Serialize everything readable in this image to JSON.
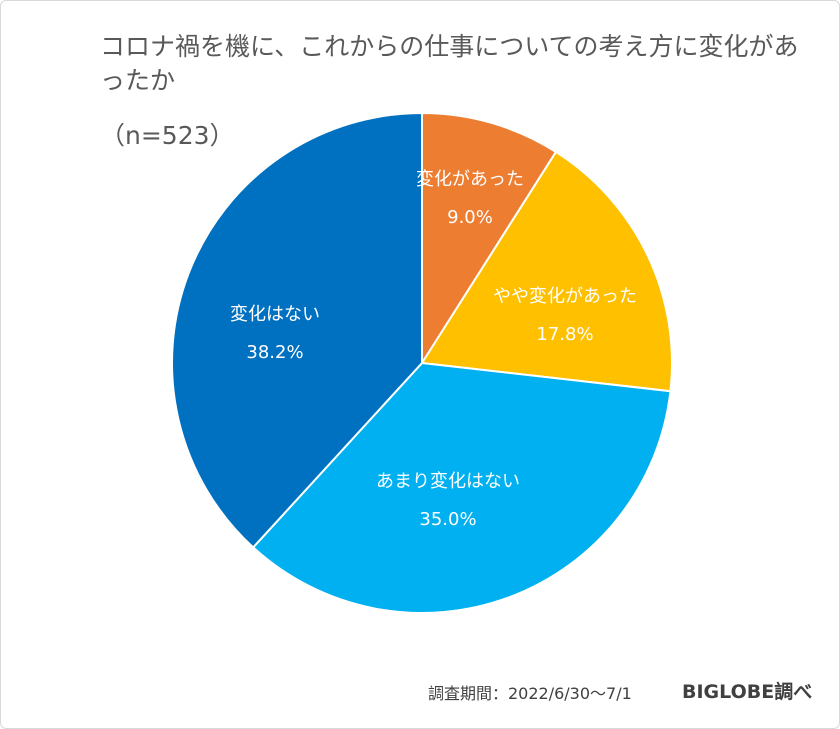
{
  "chart_data": {
    "type": "pie",
    "title": "コロナ禍を機に、これからの仕事についての考え方に変化があったか",
    "subtitle": "（n=523）",
    "categories": [
      "変化があった",
      "やや変化があった",
      "あまり変化はない",
      "変化はない"
    ],
    "values": [
      9.0,
      17.8,
      35.0,
      38.2
    ],
    "value_labels": [
      "9.0%",
      "17.8%",
      "35.0%",
      "38.2%"
    ],
    "colors": [
      "#ED7D31",
      "#FFC000",
      "#00B0F0",
      "#0070C0"
    ],
    "start": "top, clockwise",
    "legend": "none"
  },
  "footer": {
    "period": "調査期間：2022/6/30～7/1",
    "source": "BIGLOBE調べ"
  }
}
